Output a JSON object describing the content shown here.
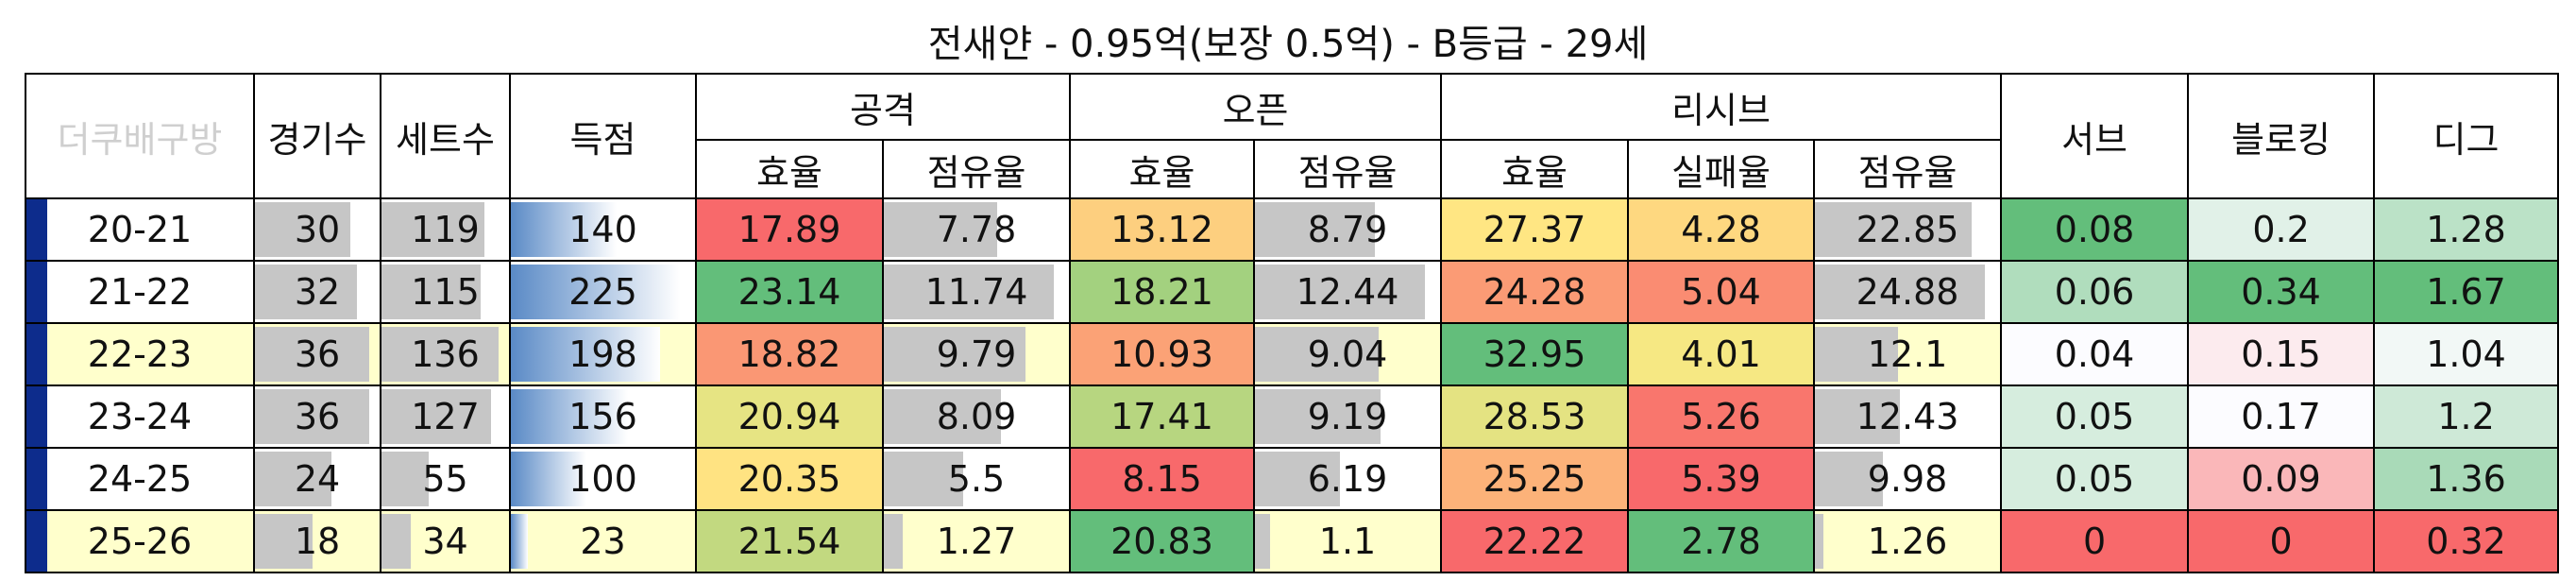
{
  "title": "전새얀 - 0.95억(보장 0.5억) - B등급 - 29세",
  "table": {
    "corner": "더쿠배구방",
    "columns_top": [
      "경기수",
      "세트수",
      "득점",
      "공격",
      "오픈",
      "리시브",
      "서브",
      "블로킹",
      "디그"
    ],
    "subcolumns": [
      "효율",
      "점유율",
      "효율",
      "점유율",
      "효율",
      "실패율",
      "점유율"
    ],
    "rows": [
      [
        "20-21",
        30,
        119,
        140,
        17.89,
        7.78,
        13.12,
        8.79,
        27.37,
        4.28,
        22.85,
        0.08,
        0.2,
        1.28
      ],
      [
        "21-22",
        32,
        115,
        225,
        23.14,
        11.74,
        18.21,
        12.44,
        24.28,
        5.04,
        24.88,
        0.06,
        0.34,
        1.67
      ],
      [
        "22-23",
        36,
        136,
        198,
        18.82,
        9.79,
        10.93,
        9.04,
        32.95,
        4.01,
        12.1,
        0.04,
        0.15,
        1.04
      ],
      [
        "23-24",
        36,
        127,
        156,
        20.94,
        8.09,
        17.41,
        9.19,
        28.53,
        5.26,
        12.43,
        0.05,
        0.17,
        1.2
      ],
      [
        "24-25",
        24,
        55,
        100,
        20.35,
        5.5,
        8.15,
        6.19,
        25.25,
        5.39,
        9.98,
        0.05,
        0.09,
        1.36
      ],
      [
        "25-26",
        18,
        34,
        23,
        21.54,
        1.27,
        20.83,
        1.1,
        22.22,
        2.78,
        1.26,
        0,
        0,
        0.32
      ]
    ]
  }
}
